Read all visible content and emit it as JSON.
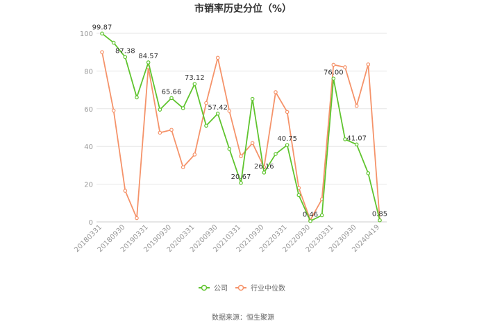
{
  "chart_data": {
    "type": "line",
    "title": "市销率历史分位（%）",
    "xlabel": "",
    "ylabel": "",
    "ylim": [
      0,
      100
    ],
    "yticks": [
      0,
      20,
      40,
      60,
      80,
      100
    ],
    "grid": true,
    "legend_position": "bottom",
    "x": [
      "20180331",
      "20180630",
      "20180930",
      "20181231",
      "20190331",
      "20190630",
      "20190930",
      "20191231",
      "20200331",
      "20200630",
      "20200930",
      "20201231",
      "20210331",
      "20210630",
      "20210930",
      "20211231",
      "20220331",
      "20220630",
      "20220930",
      "20221231",
      "20230331",
      "20230630",
      "20230930",
      "20231231",
      "20240419"
    ],
    "x_tick_labels": [
      "20180331",
      "20180930",
      "20190331",
      "20190930",
      "20200331",
      "20200930",
      "20210331",
      "20210930",
      "20220331",
      "20220930",
      "20230331",
      "20230930",
      "20240419"
    ],
    "series": [
      {
        "name": "公司",
        "color": "#5fc42e",
        "values": [
          99.87,
          95.0,
          87.38,
          66.0,
          84.57,
          59.5,
          65.66,
          60.3,
          73.12,
          51.0,
          57.42,
          38.7,
          20.67,
          65.2,
          26.16,
          36.0,
          40.75,
          14.2,
          0.46,
          3.5,
          76.0,
          43.8,
          41.07,
          25.8,
          0.85
        ],
        "labels": [
          "99.87",
          "",
          "87.38",
          "",
          "84.57",
          "",
          "65.66",
          "",
          "73.12",
          "",
          "57.42",
          "",
          "20.67",
          "",
          "26.16",
          "",
          "40.75",
          "",
          "0.46",
          "",
          "76.00",
          "",
          "41.07",
          "",
          "0.85"
        ]
      },
      {
        "name": "行业中位数",
        "color": "#f5936a",
        "values": [
          90.0,
          59.0,
          16.5,
          2.0,
          82.0,
          47.3,
          48.8,
          29.0,
          35.7,
          63.0,
          87.0,
          58.8,
          34.8,
          41.8,
          29.0,
          68.8,
          58.3,
          18.0,
          1.0,
          12.0,
          83.3,
          82.0,
          61.5,
          83.5,
          0.9
        ]
      }
    ]
  },
  "source": "数据来源：恒生聚源"
}
